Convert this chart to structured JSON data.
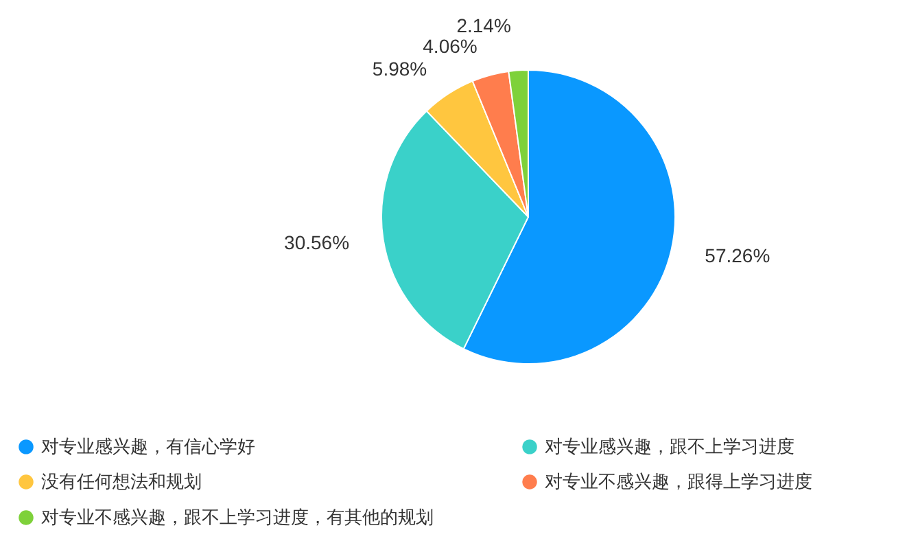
{
  "chart_data": {
    "type": "pie",
    "categories": [
      "对专业感兴趣，有信心学好",
      "对专业感兴趣，跟不上学习进度",
      "没有任何想法和规划",
      "对专业不感兴趣，跟得上学习进度",
      "对专业不感兴趣，跟不上学习进度，有其他的规划"
    ],
    "values": [
      57.26,
      30.56,
      5.98,
      4.06,
      2.14
    ],
    "colors": [
      "#0a98ff",
      "#3ad1c9",
      "#ffc63f",
      "#ff7d4d",
      "#7ed13a"
    ],
    "value_labels": [
      "57.26%",
      "30.56%",
      "5.98%",
      "4.06%",
      "2.14%"
    ],
    "legend": "bottom"
  }
}
